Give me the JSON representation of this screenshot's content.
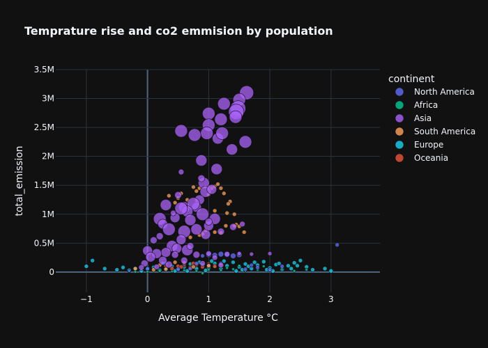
{
  "chart_data": {
    "type": "scatter",
    "title": "Temprature rise and co2 emmision by population",
    "xlabel": "Average Temperature °C",
    "ylabel": "total_emission",
    "xlim": [
      -1.5,
      3.8
    ],
    "ylim": [
      -350000,
      3500000
    ],
    "x_ticks": [
      -1,
      0,
      1,
      2,
      3
    ],
    "x_tick_labels": [
      "−1",
      "0",
      "1",
      "2",
      "3"
    ],
    "y_ticks": [
      0,
      500000,
      1000000,
      1500000,
      2000000,
      2500000,
      3000000,
      3500000
    ],
    "y_tick_labels": [
      "0",
      "0.5M",
      "1M",
      "1.5M",
      "2M",
      "2.5M",
      "3M",
      "3.5M"
    ],
    "grid": true,
    "legend": {
      "title": "continent",
      "position": "right"
    },
    "colors": {
      "North America": "#636efa",
      "Africa": "#00cc96",
      "Asia": "#ab63fa",
      "South America": "#ffa15a",
      "Europe": "#19d3f3",
      "Oceania": "#ef553b"
    },
    "series": [
      {
        "name": "North America",
        "points": [
          [
            1.0,
            300000,
            4
          ],
          [
            1.1,
            290000,
            4
          ],
          [
            1.2,
            310000,
            4
          ],
          [
            0.9,
            280000,
            3
          ],
          [
            1.3,
            300000,
            4
          ],
          [
            1.4,
            280000,
            4
          ],
          [
            1.5,
            300000,
            4
          ],
          [
            0.8,
            150000,
            3
          ],
          [
            1.0,
            120000,
            3
          ],
          [
            1.2,
            150000,
            3
          ],
          [
            3.1,
            470000,
            3
          ],
          [
            0.5,
            50000,
            3
          ],
          [
            0.7,
            60000,
            3
          ],
          [
            1.6,
            50000,
            3
          ],
          [
            2.0,
            40000,
            3
          ],
          [
            -0.3,
            20000,
            2
          ],
          [
            2.2,
            100000,
            3
          ],
          [
            0.3,
            150000,
            3
          ],
          [
            0.0,
            60000,
            3
          ],
          [
            1.8,
            80000,
            3
          ],
          [
            0.6,
            140000,
            3
          ],
          [
            1.7,
            120000,
            3
          ]
        ]
      },
      {
        "name": "Africa",
        "points": [
          [
            0.0,
            10000,
            2
          ],
          [
            0.2,
            20000,
            2
          ],
          [
            0.4,
            15000,
            2
          ],
          [
            0.6,
            30000,
            2
          ],
          [
            0.8,
            20000,
            2
          ],
          [
            1.0,
            40000,
            2
          ],
          [
            1.2,
            30000,
            2
          ],
          [
            1.4,
            50000,
            2
          ],
          [
            1.6,
            20000,
            2
          ],
          [
            1.8,
            40000,
            2
          ],
          [
            2.0,
            30000,
            2
          ],
          [
            2.2,
            60000,
            2
          ],
          [
            2.4,
            20000,
            2
          ],
          [
            -0.2,
            5000,
            2
          ],
          [
            0.5,
            80000,
            2
          ],
          [
            1.1,
            90000,
            2
          ],
          [
            1.9,
            100000,
            2
          ],
          [
            2.6,
            40000,
            2
          ],
          [
            0.9,
            -20000,
            2
          ],
          [
            1.5,
            110000,
            2
          ],
          [
            0.3,
            60000,
            2
          ],
          [
            1.3,
            70000,
            2
          ]
        ]
      },
      {
        "name": "Asia",
        "points": [
          [
            1.62,
            3100000,
            10
          ],
          [
            1.5,
            2980000,
            9
          ],
          [
            1.48,
            2830000,
            11
          ],
          [
            1.45,
            2770000,
            11
          ],
          [
            1.44,
            2680000,
            9
          ],
          [
            1.25,
            2910000,
            9
          ],
          [
            1.0,
            2740000,
            9
          ],
          [
            1.0,
            2540000,
            9
          ],
          [
            1.2,
            2640000,
            9
          ],
          [
            0.97,
            2400000,
            9
          ],
          [
            1.15,
            2310000,
            8
          ],
          [
            1.22,
            2400000,
            9
          ],
          [
            0.77,
            2370000,
            9
          ],
          [
            0.55,
            2440000,
            9
          ],
          [
            1.38,
            2120000,
            8
          ],
          [
            1.6,
            2250000,
            9
          ],
          [
            0.88,
            1930000,
            8
          ],
          [
            1.13,
            1780000,
            8
          ],
          [
            0.92,
            1540000,
            8
          ],
          [
            0.95,
            1390000,
            8
          ],
          [
            1.05,
            1430000,
            7
          ],
          [
            0.85,
            1250000,
            7
          ],
          [
            0.8,
            1120000,
            7
          ],
          [
            0.6,
            1120000,
            8
          ],
          [
            0.75,
            1180000,
            9
          ],
          [
            0.65,
            1050000,
            8
          ],
          [
            0.55,
            1100000,
            9
          ],
          [
            0.9,
            1000000,
            9
          ],
          [
            1.1,
            920000,
            8
          ],
          [
            1.0,
            800000,
            7
          ],
          [
            0.7,
            900000,
            8
          ],
          [
            0.45,
            940000,
            7
          ],
          [
            0.2,
            920000,
            9
          ],
          [
            0.25,
            830000,
            7
          ],
          [
            0.35,
            740000,
            9
          ],
          [
            0.6,
            700000,
            9
          ],
          [
            0.8,
            740000,
            8
          ],
          [
            0.95,
            650000,
            7
          ],
          [
            0.55,
            560000,
            7
          ],
          [
            0.4,
            450000,
            8
          ],
          [
            0.3,
            340000,
            7
          ],
          [
            0.15,
            320000,
            7
          ],
          [
            0.65,
            380000,
            8
          ],
          [
            0.48,
            410000,
            7
          ],
          [
            0.0,
            370000,
            7
          ],
          [
            0.05,
            260000,
            7
          ],
          [
            0.25,
            200000,
            6
          ],
          [
            0.3,
            1160000,
            8
          ],
          [
            0.5,
            1330000,
            5
          ],
          [
            0.55,
            1730000,
            4
          ],
          [
            0.42,
            1020000,
            4
          ],
          [
            0.88,
            1620000,
            5
          ],
          [
            1.0,
            870000,
            5
          ],
          [
            1.2,
            700000,
            5
          ],
          [
            1.4,
            780000,
            5
          ],
          [
            1.55,
            830000,
            4
          ],
          [
            0.2,
            620000,
            5
          ],
          [
            0.1,
            550000,
            5
          ],
          [
            -0.05,
            150000,
            5
          ],
          [
            0.8,
            300000,
            5
          ],
          [
            1.0,
            320000,
            4
          ],
          [
            1.3,
            310000,
            4
          ],
          [
            1.5,
            320000,
            3
          ],
          [
            0.6,
            200000,
            5
          ],
          [
            0.35,
            130000,
            5
          ],
          [
            0.9,
            150000,
            4
          ],
          [
            1.2,
            120000,
            4
          ],
          [
            0.7,
            450000,
            5
          ],
          [
            0.45,
            300000,
            5
          ],
          [
            0.15,
            90000,
            4
          ],
          [
            -0.1,
            80000,
            4
          ],
          [
            1.7,
            310000,
            3
          ],
          [
            2.0,
            320000,
            3
          ],
          [
            1.1,
            250000,
            4
          ]
        ]
      },
      {
        "name": "South America",
        "points": [
          [
            0.75,
            1470000,
            3
          ],
          [
            0.8,
            1400000,
            3
          ],
          [
            0.85,
            1450000,
            3
          ],
          [
            0.95,
            1470000,
            3
          ],
          [
            1.0,
            1460000,
            3
          ],
          [
            1.05,
            1450000,
            3
          ],
          [
            1.1,
            1480000,
            3
          ],
          [
            1.15,
            1520000,
            3
          ],
          [
            1.2,
            1450000,
            3
          ],
          [
            0.55,
            1360000,
            3
          ],
          [
            0.5,
            1280000,
            3
          ],
          [
            0.45,
            1200000,
            3
          ],
          [
            0.35,
            1320000,
            3
          ],
          [
            0.65,
            1250000,
            3
          ],
          [
            1.25,
            1360000,
            3
          ],
          [
            1.0,
            1340000,
            3
          ],
          [
            1.35,
            1220000,
            3
          ],
          [
            1.1,
            1060000,
            3
          ],
          [
            1.2,
            680000,
            3
          ],
          [
            1.1,
            690000,
            3
          ],
          [
            1.28,
            800000,
            3
          ],
          [
            1.45,
            820000,
            3
          ],
          [
            1.5,
            790000,
            3
          ],
          [
            1.58,
            690000,
            3
          ],
          [
            1.42,
            800000,
            3
          ],
          [
            0.9,
            660000,
            3
          ],
          [
            0.85,
            640000,
            3
          ],
          [
            0.95,
            720000,
            3
          ],
          [
            1.42,
            1000000,
            3
          ],
          [
            1.3,
            1020000,
            3
          ],
          [
            1.32,
            1180000,
            3
          ],
          [
            0.7,
            600000,
            3
          ],
          [
            0.6,
            160000,
            3
          ],
          [
            0.2,
            120000,
            3
          ],
          [
            0.45,
            170000,
            3
          ],
          [
            0.75,
            90000,
            3
          ],
          [
            1.0,
            110000,
            3
          ],
          [
            0.3,
            50000,
            3
          ],
          [
            -0.2,
            60000,
            3
          ],
          [
            0.1,
            40000,
            3
          ]
        ]
      },
      {
        "name": "Europe",
        "points": [
          [
            -1.0,
            100000,
            3
          ],
          [
            -0.9,
            200000,
            3
          ],
          [
            -0.7,
            60000,
            3
          ],
          [
            -0.5,
            40000,
            3
          ],
          [
            -0.4,
            80000,
            3
          ],
          [
            -0.3,
            30000,
            3
          ],
          [
            -0.2,
            60000,
            3
          ],
          [
            -0.1,
            20000,
            3
          ],
          [
            0.0,
            50000,
            3
          ],
          [
            0.1,
            80000,
            3
          ],
          [
            0.2,
            30000,
            3
          ],
          [
            0.3,
            60000,
            3
          ],
          [
            0.4,
            100000,
            3
          ],
          [
            0.5,
            40000,
            3
          ],
          [
            0.6,
            90000,
            3
          ],
          [
            0.7,
            140000,
            3
          ],
          [
            0.8,
            60000,
            3
          ],
          [
            0.9,
            120000,
            3
          ],
          [
            1.0,
            80000,
            3
          ],
          [
            1.1,
            150000,
            3
          ],
          [
            1.2,
            60000,
            3
          ],
          [
            1.3,
            110000,
            3
          ],
          [
            1.4,
            170000,
            3
          ],
          [
            1.5,
            90000,
            3
          ],
          [
            1.6,
            140000,
            3
          ],
          [
            1.7,
            60000,
            3
          ],
          [
            1.8,
            120000,
            3
          ],
          [
            1.9,
            180000,
            3
          ],
          [
            2.0,
            70000,
            3
          ],
          [
            2.1,
            130000,
            3
          ],
          [
            2.2,
            50000,
            3
          ],
          [
            2.3,
            110000,
            3
          ],
          [
            2.4,
            160000,
            3
          ],
          [
            2.5,
            200000,
            3
          ],
          [
            2.6,
            90000,
            3
          ],
          [
            2.7,
            40000,
            3
          ],
          [
            2.9,
            60000,
            3
          ],
          [
            3.0,
            20000,
            3
          ],
          [
            1.05,
            190000,
            3
          ],
          [
            0.95,
            30000,
            3
          ],
          [
            1.25,
            190000,
            3
          ],
          [
            1.55,
            40000,
            3
          ],
          [
            1.75,
            170000,
            3
          ],
          [
            2.05,
            20000,
            3
          ],
          [
            2.35,
            60000,
            3
          ],
          [
            0.65,
            20000,
            3
          ],
          [
            0.85,
            170000,
            3
          ],
          [
            1.45,
            20000,
            3
          ],
          [
            1.65,
            100000,
            3
          ],
          [
            1.95,
            40000,
            3
          ],
          [
            2.15,
            150000,
            3
          ],
          [
            2.45,
            110000,
            3
          ],
          [
            0.25,
            150000,
            3
          ],
          [
            0.45,
            20000,
            3
          ]
        ]
      },
      {
        "name": "Oceania",
        "points": [
          [
            0.5,
            100000,
            3
          ],
          [
            0.6,
            120000,
            3
          ],
          [
            0.7,
            80000,
            3
          ],
          [
            0.8,
            130000,
            3
          ],
          [
            0.9,
            90000,
            3
          ],
          [
            1.0,
            140000,
            3
          ],
          [
            1.1,
            100000,
            3
          ],
          [
            0.4,
            60000,
            3
          ],
          [
            0.3,
            110000,
            3
          ],
          [
            1.2,
            130000,
            3
          ],
          [
            0.55,
            90000,
            3
          ],
          [
            0.75,
            150000,
            3
          ]
        ]
      }
    ]
  }
}
